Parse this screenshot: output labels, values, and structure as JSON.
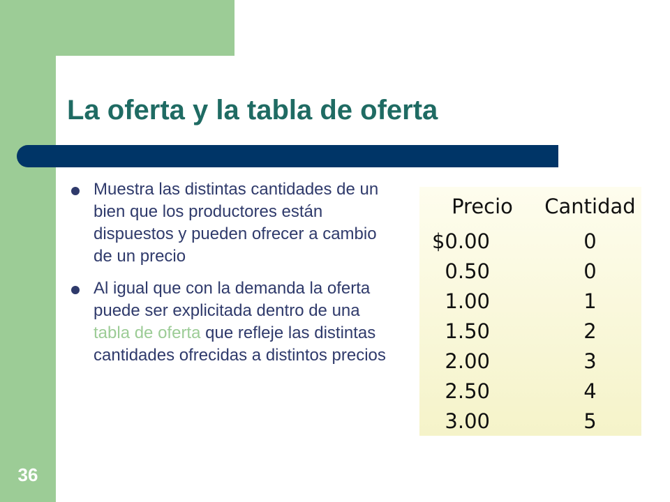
{
  "slide": {
    "title": "La oferta y la tabla de oferta",
    "page_number": "36"
  },
  "bullets": [
    {
      "text": "Muestra las distintas cantidades de un bien que los productores están dispuestos y pueden ofrecer a cambio de un precio"
    },
    {
      "before": "Al igual que con la demanda la oferta puede ser explicitada dentro de una ",
      "highlight": "tabla de oferta",
      "after": " que refleje las distintas cantidades ofrecidas a distintos precios"
    }
  ],
  "supply_table": {
    "headers": [
      "Precio",
      "Cantidad"
    ],
    "rows": [
      [
        "$0.00",
        "0"
      ],
      [
        "0.50",
        "0"
      ],
      [
        "1.00",
        "1"
      ],
      [
        "1.50",
        "2"
      ],
      [
        "2.00",
        "3"
      ],
      [
        "2.50",
        "4"
      ],
      [
        "3.00",
        "5"
      ]
    ]
  },
  "colors": {
    "accent_green": "#9ccc96",
    "title_teal": "#1f6b63",
    "bar_navy": "#003567",
    "body_text": "#2f3a6b"
  }
}
